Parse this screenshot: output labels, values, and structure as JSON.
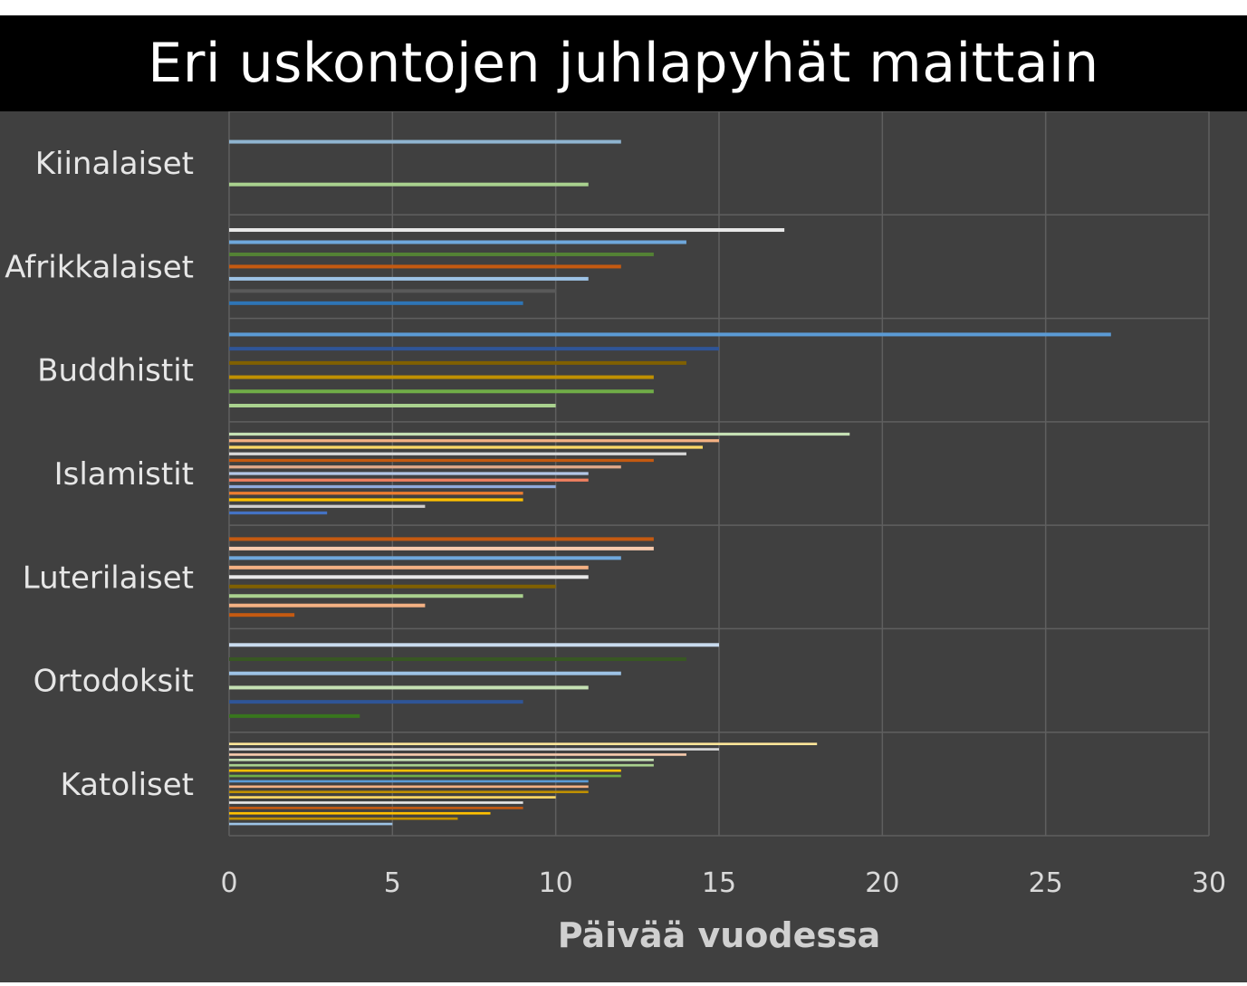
{
  "title": "Eri uskontojen juhlapyhät maittain",
  "chart_data": {
    "type": "bar",
    "orientation": "horizontal",
    "title": "Eri uskontojen juhlapyhät maittain",
    "xlabel": "Päivää vuodessa",
    "ylabel": "",
    "xlim": [
      0,
      30
    ],
    "x_ticks": [
      0,
      5,
      10,
      15,
      20,
      25,
      30
    ],
    "x_tick_labels": [
      "0",
      "5",
      "10",
      "15",
      "20",
      "25",
      "30"
    ],
    "grid": true,
    "categories": [
      "Kiinalaiset",
      "Afrikkalaiset",
      "Buddhistit",
      "Islamistit",
      "Luterilaiset",
      "Ortodoksit",
      "Katoliset"
    ],
    "groups": [
      {
        "name": "Kiinalaiset",
        "bars": [
          {
            "value": 12,
            "color": "#8fb4d0"
          },
          {
            "value": 11,
            "color": "#a9d18e"
          }
        ]
      },
      {
        "name": "Afrikkalaiset",
        "bars": [
          {
            "value": 17,
            "color": "#e8e8e8"
          },
          {
            "value": 14,
            "color": "#6fa8dc"
          },
          {
            "value": 13,
            "color": "#548235"
          },
          {
            "value": 12,
            "color": "#c55a11"
          },
          {
            "value": 11,
            "color": "#9dc3e6"
          },
          {
            "value": 10,
            "color": "#595959"
          },
          {
            "value": 9,
            "color": "#2e75b6"
          }
        ]
      },
      {
        "name": "Buddhistit",
        "bars": [
          {
            "value": 27,
            "color": "#5b9bd5"
          },
          {
            "value": 15,
            "color": "#2f5597"
          },
          {
            "value": 14,
            "color": "#806000"
          },
          {
            "value": 13,
            "color": "#bf9000"
          },
          {
            "value": 13,
            "color": "#70ad47"
          },
          {
            "value": 10,
            "color": "#a9d18e"
          }
        ]
      },
      {
        "name": "Islamistit",
        "bars": [
          {
            "value": 19,
            "color": "#c5e0b4"
          },
          {
            "value": 15,
            "color": "#f4b183"
          },
          {
            "value": 14.5,
            "color": "#ffd966"
          },
          {
            "value": 14,
            "color": "#d9d9d9"
          },
          {
            "value": 13,
            "color": "#c55a11"
          },
          {
            "value": 12,
            "color": "#e2a98a"
          },
          {
            "value": 11,
            "color": "#b4c7e7"
          },
          {
            "value": 11,
            "color": "#f08060"
          },
          {
            "value": 10,
            "color": "#8faadc"
          },
          {
            "value": 9,
            "color": "#ed7d31"
          },
          {
            "value": 9,
            "color": "#ffc000"
          },
          {
            "value": 6,
            "color": "#d0cece"
          },
          {
            "value": 3,
            "color": "#4472c4"
          }
        ]
      },
      {
        "name": "Luterilaiset",
        "bars": [
          {
            "value": 13,
            "color": "#c55a11"
          },
          {
            "value": 13,
            "color": "#f8cbad"
          },
          {
            "value": 12,
            "color": "#6fa8dc"
          },
          {
            "value": 11,
            "color": "#f4b183"
          },
          {
            "value": 11,
            "color": "#e8e8e8"
          },
          {
            "value": 10,
            "color": "#806000"
          },
          {
            "value": 9,
            "color": "#a9d18e"
          },
          {
            "value": 6,
            "color": "#f4b183"
          },
          {
            "value": 2,
            "color": "#c55a11"
          }
        ]
      },
      {
        "name": "Ortodoksit",
        "bars": [
          {
            "value": 15,
            "color": "#c9dbee"
          },
          {
            "value": 14,
            "color": "#385723"
          },
          {
            "value": 12,
            "color": "#9dc3e6"
          },
          {
            "value": 11,
            "color": "#c5e0b4"
          },
          {
            "value": 9,
            "color": "#2f5597"
          },
          {
            "value": 4,
            "color": "#38761d"
          }
        ]
      },
      {
        "name": "Katoliset",
        "bars": [
          {
            "value": 18,
            "color": "#ffe699"
          },
          {
            "value": 15,
            "color": "#d9d9d9"
          },
          {
            "value": 14,
            "color": "#f8cbad"
          },
          {
            "value": 13,
            "color": "#c5e0b4"
          },
          {
            "value": 13,
            "color": "#a9d18e"
          },
          {
            "value": 12,
            "color": "#ffc000"
          },
          {
            "value": 12,
            "color": "#70ad47"
          },
          {
            "value": 11,
            "color": "#5b9bd5"
          },
          {
            "value": 11,
            "color": "#f4b183"
          },
          {
            "value": 11,
            "color": "#bf9000"
          },
          {
            "value": 10,
            "color": "#ffd966"
          },
          {
            "value": 9,
            "color": "#e8e8e8"
          },
          {
            "value": 9,
            "color": "#c55a11"
          },
          {
            "value": 8,
            "color": "#ffc000"
          },
          {
            "value": 7,
            "color": "#bf9000"
          },
          {
            "value": 5,
            "color": "#9dc3e6"
          }
        ]
      }
    ]
  },
  "colors": {
    "background": "#404040",
    "title_bar": "#000000",
    "grid": "#5f5f5f"
  }
}
